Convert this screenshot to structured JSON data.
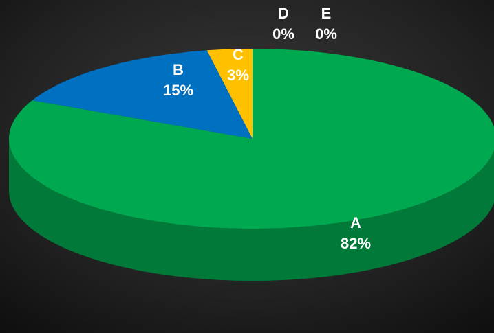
{
  "chart_data": {
    "type": "pie3d",
    "categories": [
      "A",
      "B",
      "C",
      "D",
      "E"
    ],
    "values": [
      82,
      15,
      3,
      0,
      0
    ],
    "value_labels": [
      "82%",
      "15%",
      "3%",
      "0%",
      "0%"
    ],
    "colors": [
      "#00a84f",
      "#0070c0",
      "#ffc000",
      "#7030a0",
      "#00b0f0"
    ]
  }
}
